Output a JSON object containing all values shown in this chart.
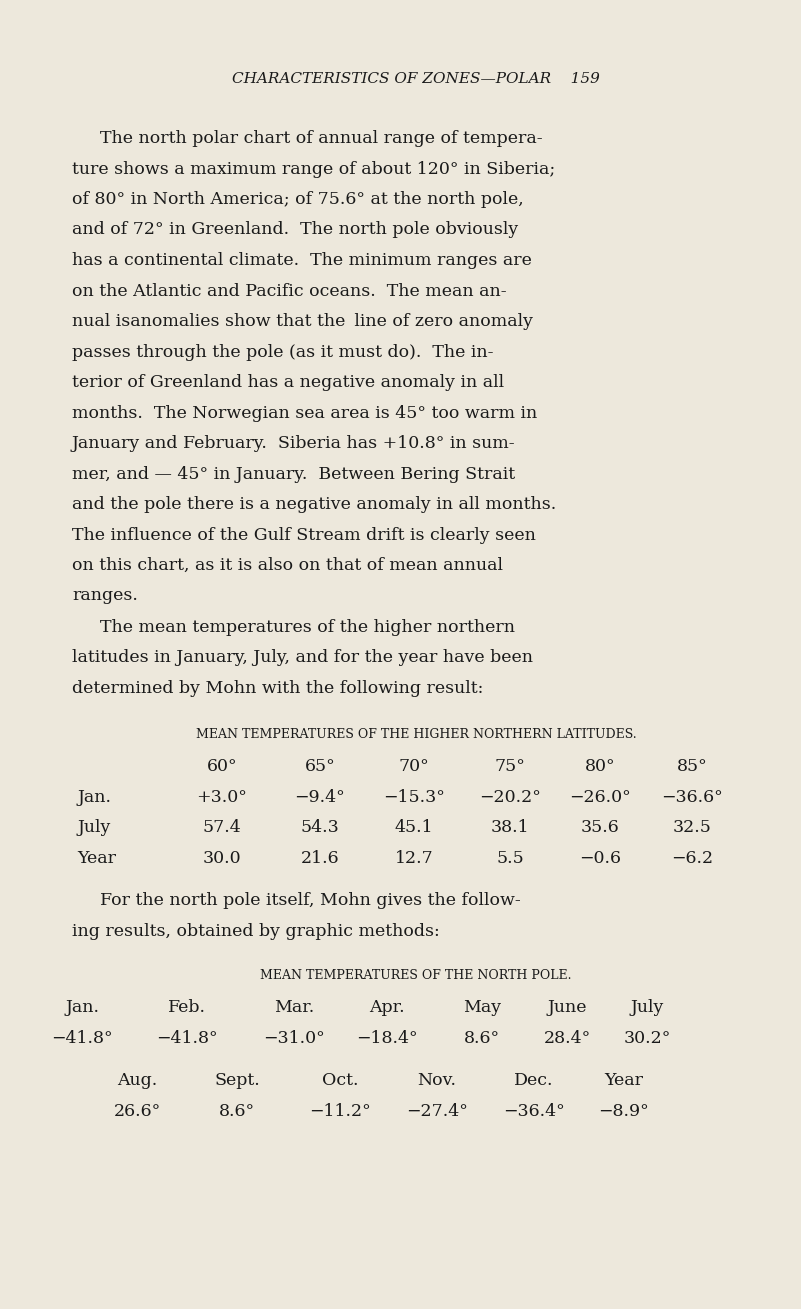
{
  "bg_color": "#ede8dc",
  "text_color": "#1a1a1a",
  "page_width": 8.01,
  "page_height": 13.09,
  "header": "CHARACTERISTICS OF ZONES—POLAR    159",
  "table1_title": "MEAN TEMPERATURES OF THE HIGHER NORTHERN LATITUDES.",
  "table1_cols": [
    "",
    "60°",
    "65°",
    "70°",
    "75°",
    "80°",
    "85°"
  ],
  "table1_rows": [
    [
      "Jan.",
      "+3.0°",
      "−9.4°",
      "−15.3°",
      "−20.2°",
      "−26.0°",
      "−36.6°"
    ],
    [
      "July",
      "57.4",
      "54.3",
      "45.1",
      "38.1",
      "35.6",
      "32.5"
    ],
    [
      "Year",
      "30.0",
      "21.6",
      "12.7",
      "5.5",
      "−0.6",
      "−6.2"
    ]
  ],
  "table2_title": "MEAN TEMPERATURES OF THE NORTH POLE.",
  "table2_header_row1": [
    "Jan.",
    "Feb.",
    "Mar.",
    "Apr.",
    "May",
    "June",
    "July"
  ],
  "table2_data_row1": [
    "−41.8°",
    "−41.8°",
    "−31.0°",
    "−18.4°",
    "8.6°",
    "28.4°",
    "30.2°"
  ],
  "table2_header_row2": [
    "Aug.",
    "Sept.",
    "Oct.",
    "Nov.",
    "Dec.",
    "Year"
  ],
  "table2_data_row2": [
    "26.6°",
    "8.6°",
    "−11.2°",
    "−27.4°",
    "−36.4°",
    "−8.9°"
  ]
}
